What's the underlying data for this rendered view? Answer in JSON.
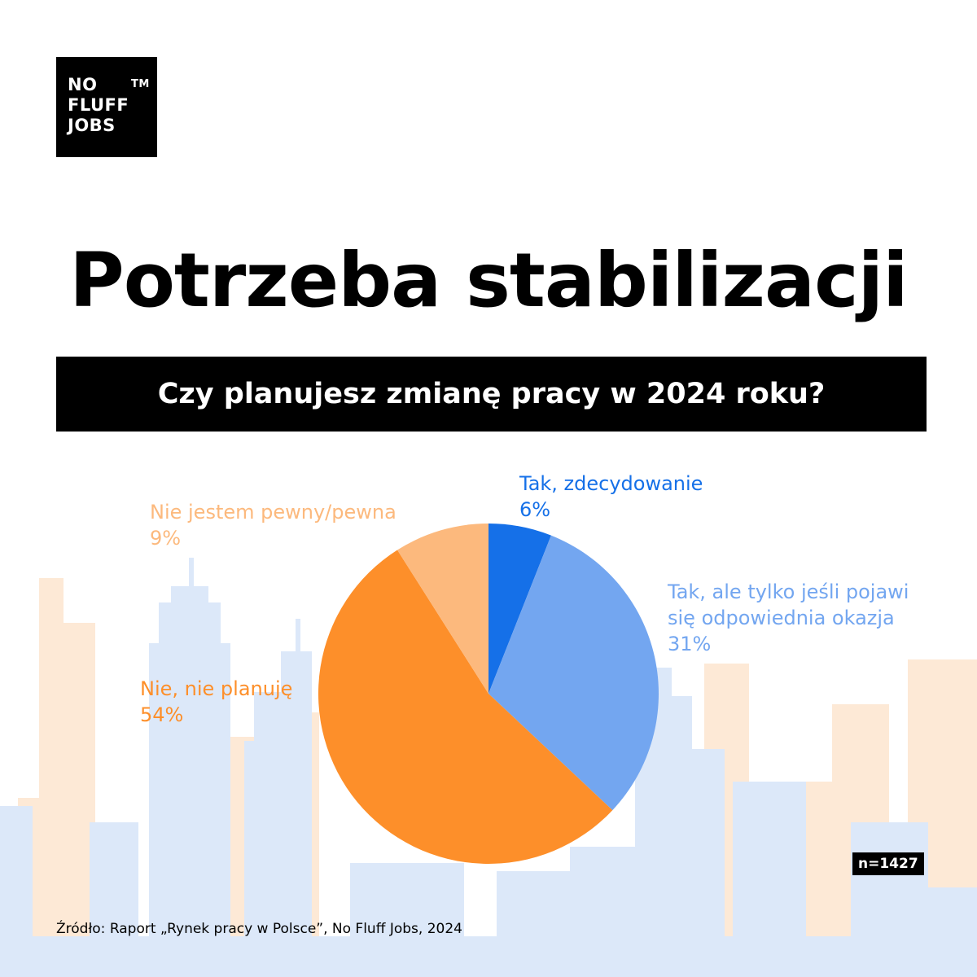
{
  "brand": {
    "line1": "NO",
    "line2": "FLUFF",
    "line3": "JOBS",
    "tm": "TM"
  },
  "title": "Potrzeba stabilizacji",
  "question": "Czy planujesz zmianę pracy w 2024 roku?",
  "n_label": "n=1427",
  "source": "Źródło: Raport „Rynek pracy w Polsce”, No Fluff Jobs, 2024",
  "colors": {
    "skyline_blue": "#dce8f9",
    "skyline_orange": "#fde9d6"
  },
  "chart_data": {
    "type": "pie",
    "title": "Czy planujesz zmianę pracy w 2024 roku?",
    "slices": [
      {
        "label": "Tak, zdecydowanie",
        "label_lines": [
          "Tak, zdecydowanie"
        ],
        "value": 6,
        "value_label": "6%",
        "color": "#1570e8"
      },
      {
        "label": "Tak, ale tylko jeśli pojawi się odpowiednia okazja",
        "label_lines": [
          "Tak, ale tylko jeśli pojawi",
          "się odpowiednia okazja"
        ],
        "value": 31,
        "value_label": "31%",
        "color": "#73a6f0"
      },
      {
        "label": "Nie, nie planuję",
        "label_lines": [
          "Nie, nie planuję"
        ],
        "value": 54,
        "value_label": "54%",
        "color": "#fd8f2a"
      },
      {
        "label": "Nie jestem pewny/pewna",
        "label_lines": [
          "Nie jestem pewny/pewna"
        ],
        "value": 9,
        "value_label": "9%",
        "color": "#fcb97d"
      }
    ],
    "start": "12 o'clock",
    "direction": "clockwise"
  }
}
